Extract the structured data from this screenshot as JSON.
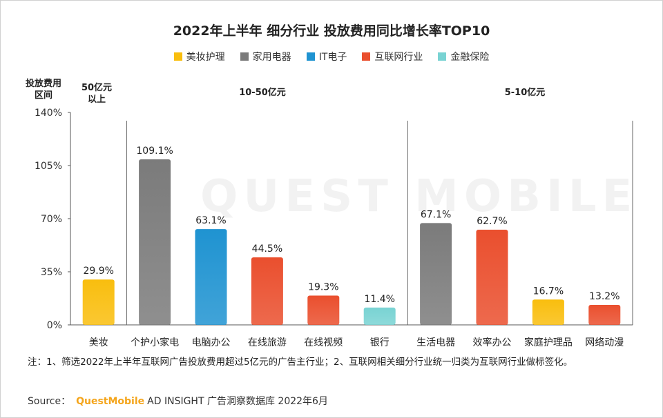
{
  "title": "2022年上半年 细分行业 投放费用同比增长率TOP10",
  "legend": [
    {
      "label": "美妆护理",
      "color": "#f9be0e"
    },
    {
      "label": "家用电器",
      "color": "#7b7b7b"
    },
    {
      "label": "IT电子",
      "color": "#1f93d1"
    },
    {
      "label": "互联网行业",
      "color": "#ea4f2e"
    },
    {
      "label": "金融保险",
      "color": "#79d3d3"
    }
  ],
  "axis_title": "投放费用区间",
  "groups": [
    "50亿元以上",
    "10-50亿元",
    "5-10亿元"
  ],
  "watermark": "QUEST MOBILE",
  "chart_data": {
    "type": "bar",
    "categories": [
      "美妆",
      "个护小家电",
      "电脑办公",
      "在线旅游",
      "在线视频",
      "银行",
      "生活电器",
      "效率办公",
      "家庭护理品",
      "网络动漫"
    ],
    "values": [
      29.9,
      109.1,
      63.1,
      44.5,
      19.3,
      11.4,
      67.1,
      62.7,
      16.7,
      13.2
    ],
    "data_labels": [
      "29.9%",
      "109.1%",
      "63.1%",
      "44.5%",
      "19.3%",
      "11.4%",
      "67.1%",
      "62.7%",
      "16.7%",
      "13.2%"
    ],
    "industry": [
      "美妆护理",
      "家用电器",
      "IT电子",
      "互联网行业",
      "互联网行业",
      "金融保险",
      "家用电器",
      "互联网行业",
      "美妆护理",
      "互联网行业"
    ],
    "ylim": [
      0,
      140
    ],
    "yticks": [
      0,
      35,
      70,
      105,
      140
    ],
    "ytick_labels": [
      "0%",
      "35%",
      "70%",
      "105%",
      "140%"
    ],
    "title": "2022年上半年 细分行业 投放费用同比增长率TOP10",
    "xlabel": "",
    "ylabel": "投放费用区间"
  },
  "note": "注：1、筛选2022年上半年互联网广告投放费用超过5亿元的广告主行业；2、互联网相关细分行业统一归类为互联网行业做标签化。",
  "source": {
    "prefix": "Source：",
    "brand": "QuestMobile",
    "rest": "AD INSIGHT 广告洞察数据库 2022年6月"
  }
}
